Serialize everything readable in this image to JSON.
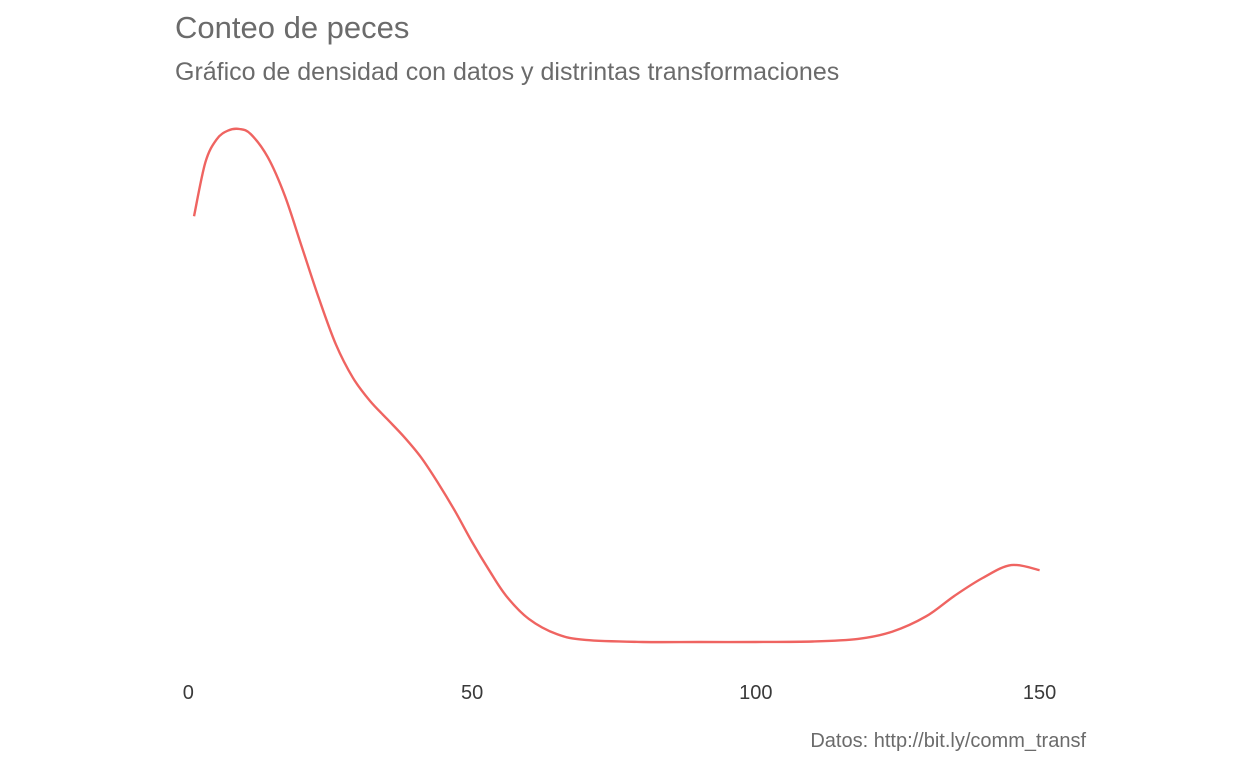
{
  "chart_data": {
    "type": "line",
    "title": "Conteo de peces",
    "subtitle": "Gráfico de densidad con datos y distrintas transformaciones",
    "caption": "Datos: http://bit.ly/comm_transf",
    "xlabel": "",
    "ylabel": "",
    "xlim": [
      -2,
      158
    ],
    "ylim": [
      0,
      1
    ],
    "x_ticks": [
      0,
      50,
      100,
      150
    ],
    "grid": false,
    "color": "#ef6461",
    "series": [
      {
        "x": [
          1,
          3,
          5,
          7,
          9,
          11,
          14,
          17,
          20,
          23,
          26,
          29,
          32,
          35,
          38,
          41,
          44,
          47,
          50,
          53,
          56,
          60,
          65,
          70,
          80,
          90,
          100,
          110,
          118,
          124,
          130,
          135,
          140,
          145,
          150
        ],
        "y": [
          0.83,
          0.935,
          0.98,
          0.997,
          1.0,
          0.99,
          0.945,
          0.87,
          0.77,
          0.67,
          0.58,
          0.515,
          0.47,
          0.435,
          0.4,
          0.36,
          0.31,
          0.255,
          0.195,
          0.14,
          0.09,
          0.045,
          0.015,
          0.004,
          0.0,
          0.0,
          0.0,
          0.001,
          0.006,
          0.02,
          0.05,
          0.09,
          0.125,
          0.15,
          0.14
        ]
      }
    ]
  }
}
